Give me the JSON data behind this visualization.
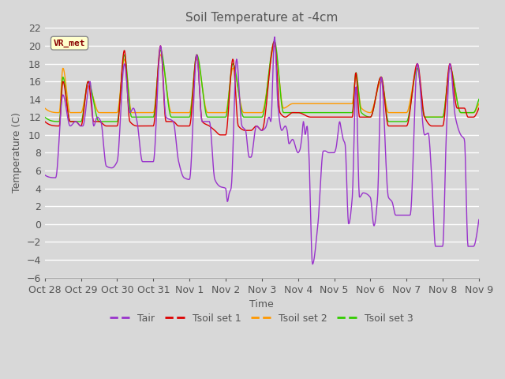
{
  "title": "Soil Temperature at -4cm",
  "xlabel": "Time",
  "ylabel": "Temperature (C)",
  "ylim": [
    -6,
    22
  ],
  "yticks": [
    -6,
    -4,
    -2,
    0,
    2,
    4,
    6,
    8,
    10,
    12,
    14,
    16,
    18,
    20,
    22
  ],
  "x_tick_labels": [
    "Oct 28",
    "Oct 29",
    "Oct 30",
    "Oct 31",
    "Nov 1",
    "Nov 2",
    "Nov 3",
    "Nov 4",
    "Nov 5",
    "Nov 6",
    "Nov 7",
    "Nov 8",
    "Nov 9"
  ],
  "annotation_text": "VR_met",
  "annotation_bg": "#ffffcc",
  "annotation_border": "#aaaaaa",
  "annotation_text_color": "#880000",
  "line_colors": {
    "Tair": "#9933cc",
    "Tsoil set 1": "#dd0000",
    "Tsoil set 2": "#ff9900",
    "Tsoil set 3": "#33cc00"
  },
  "legend_labels": [
    "Tair",
    "Tsoil set 1",
    "Tsoil set 2",
    "Tsoil set 3"
  ],
  "bg_color": "#d8d8d8",
  "plot_bg_color": "#d8d8d8",
  "grid_color": "#ffffff",
  "font_color": "#555555",
  "title_fontsize": 11,
  "tick_fontsize": 9,
  "label_fontsize": 9
}
